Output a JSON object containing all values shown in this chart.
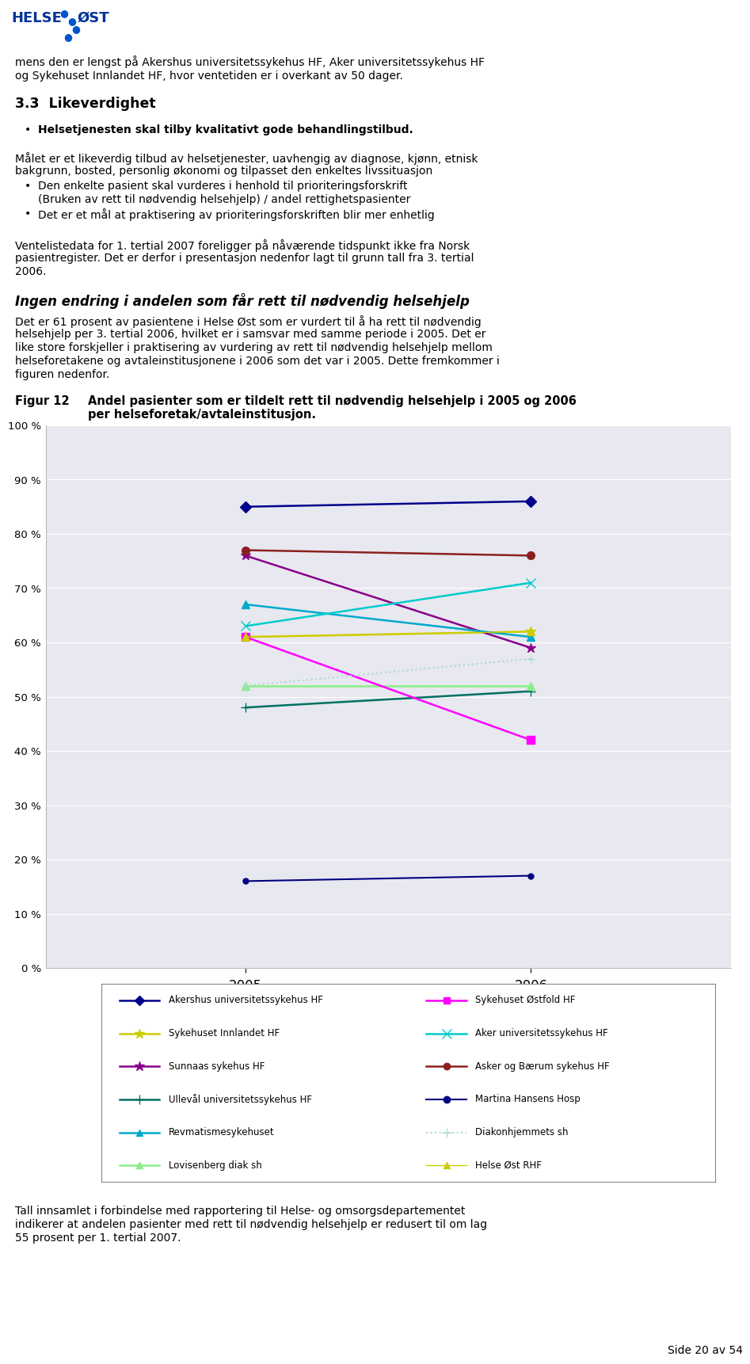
{
  "years": [
    2005,
    2006
  ],
  "series": [
    {
      "label": "Akershus universitetssykehus HF",
      "values": [
        85,
        86
      ],
      "color": "#000080",
      "marker": "D",
      "linestyle": "-",
      "linewidth": 1.8
    },
    {
      "label": "Sykehuset Innlandet HF",
      "values": [
        61,
        62
      ],
      "color": "#FFFF00",
      "marker": "*",
      "linestyle": "-",
      "linewidth": 1.8
    },
    {
      "label": "Sunnaas sykehus HF",
      "values": [
        76,
        59
      ],
      "color": "#AA00AA",
      "marker": "*",
      "linestyle": "-",
      "linewidth": 1.8
    },
    {
      "label": "Ullevål universitetssykehus HF",
      "values": [
        48,
        51
      ],
      "color": "#008060",
      "marker": "+",
      "linestyle": "-",
      "linewidth": 1.8
    },
    {
      "label": "Revmatismesykehuset",
      "values": [
        67,
        61
      ],
      "color": "#00BFFF",
      "marker": "^",
      "linestyle": "-",
      "linewidth": 1.8
    },
    {
      "label": "Lovisenberg diak sh",
      "values": [
        52,
        52
      ],
      "color": "#90EE90",
      "marker": "^",
      "linestyle": "-",
      "linewidth": 1.8
    },
    {
      "label": "Sykehuset Østfold HF",
      "values": [
        61,
        42
      ],
      "color": "#FF00FF",
      "marker": "s",
      "linestyle": "-",
      "linewidth": 1.8
    },
    {
      "label": "Aker universitetssykehus HF",
      "values": [
        63,
        71
      ],
      "color": "#00CCCC",
      "marker": "x",
      "linestyle": "-",
      "linewidth": 1.8
    },
    {
      "label": "Asker og Bærum sykehus HF",
      "values": [
        77,
        76
      ],
      "color": "#8B0000",
      "marker": "o",
      "linestyle": "-",
      "linewidth": 1.8
    },
    {
      "label": "Martina Hansens Hosp",
      "values": [
        16,
        17
      ],
      "color": "#00008B",
      "marker": "o",
      "linestyle": "-",
      "linewidth": 1.8
    },
    {
      "label": "Diakonhjemmets sh",
      "values": [
        52,
        57
      ],
      "color": "#AAFFEE",
      "marker": "+",
      "linestyle": ":",
      "linewidth": 1.5
    },
    {
      "label": "Helse Øst RHF",
      "values": [
        61,
        62
      ],
      "color": "#FFFF00",
      "marker": "*",
      "linestyle": "-",
      "linewidth": 1.0
    }
  ],
  "ylim": [
    0,
    100
  ],
  "yticks": [
    0,
    10,
    20,
    30,
    40,
    50,
    60,
    70,
    80,
    90,
    100
  ],
  "ytick_labels": [
    "0 %",
    "10 %",
    "20 %",
    "30 %",
    "40 %",
    "50 %",
    "60 %",
    "70 %",
    "80 %",
    "90 %",
    "100 %"
  ],
  "plot_bg": "#e8e8f0",
  "grid_color": "#ffffff",
  "background_color": "#ffffff"
}
